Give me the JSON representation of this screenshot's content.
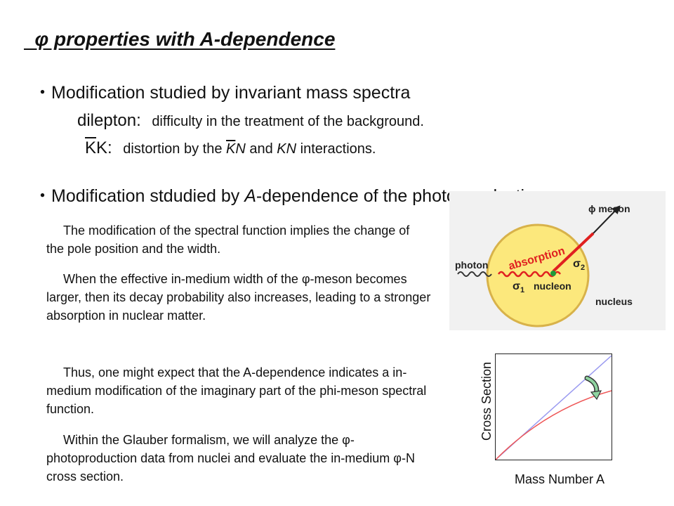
{
  "slide": {
    "title": "  φ properties with A-dependence",
    "bullet1": {
      "marker": "・",
      "text": "Modification studied by invariant mass spectra"
    },
    "dilepton": {
      "label": "dilepton:",
      "text": "difficulty in the treatment of the background."
    },
    "kk": {
      "label_a": "K",
      "label_b": "K",
      "colon": ":",
      "text_1": "distortion by the ",
      "kn1_k": "K",
      "kn1_n": "N",
      "text_2": " and ",
      "kn2_k": "K",
      "kn2_n": "N",
      "text_3": " interactions."
    },
    "bullet2": {
      "marker": "・",
      "text_1": "Modification stdudied by ",
      "a": "A",
      "text_2": "-dependence of the photo-production"
    },
    "paragraphs": [
      "The modification of the spectral function implies the change of the pole position and the width.",
      "When the effective in-medium width of the φ-meson becomes larger, then its decay probability also increases, leading to a stronger absorption in nuclear matter.",
      "Thus, one might expect that the A-dependence indicates a in-medium modification of the imaginary part of the phi-meson spectral function.",
      "Within the Glauber formalism, we will analyze the φ-photoproduction data from nuclei and evaluate the in-medium φ-N cross section."
    ],
    "diagram": {
      "phi_meson": "ϕ meson",
      "photon": "photon",
      "absorption": "absorption",
      "sigma2": "σ",
      "sigma2_sub": "2",
      "sigma1": "σ",
      "sigma1_sub": "1",
      "nucleon": "nucleon",
      "nucleus": "nucleus"
    },
    "graph": {
      "ylabel": "Cross Section",
      "xlabel": "Mass Number A"
    },
    "colors": {
      "nucleus_fill": "#fce87c",
      "nucleus_stroke": "#d8b24a",
      "absorption_red": "#e02020",
      "nucleon_green": "#1f9a3a",
      "linear_line": "#9a9af0",
      "curve_line": "#ee5555"
    }
  }
}
